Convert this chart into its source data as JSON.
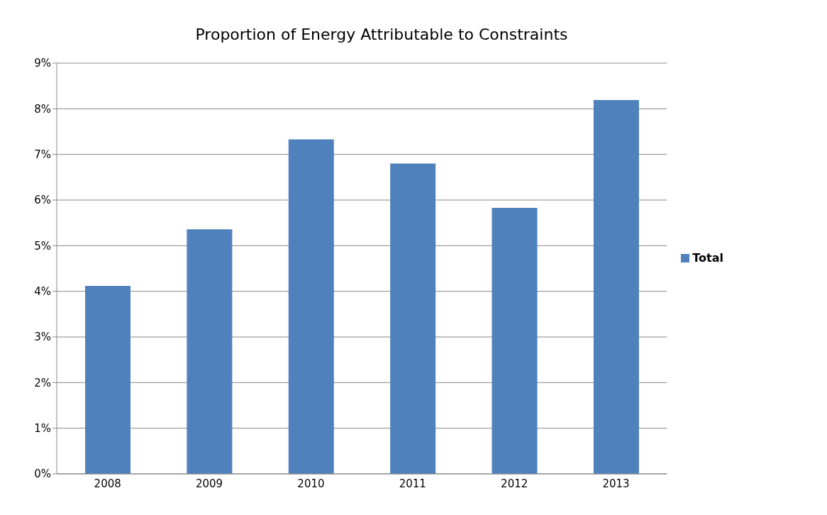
{
  "chart_data": {
    "type": "bar",
    "title": "Proportion of Energy Attributable to Constraints",
    "categories": [
      "2008",
      "2009",
      "2010",
      "2011",
      "2012",
      "2013"
    ],
    "series": [
      {
        "name": "Total",
        "color": "#4f81bd",
        "values": [
          4.12,
          5.36,
          7.33,
          6.8,
          5.83,
          8.19
        ]
      }
    ],
    "ylim": [
      0,
      9
    ],
    "yticks": [
      {
        "value": 0,
        "label": "0%"
      },
      {
        "value": 1,
        "label": "1%"
      },
      {
        "value": 2,
        "label": "2%"
      },
      {
        "value": 3,
        "label": "3%"
      },
      {
        "value": 4,
        "label": "4%"
      },
      {
        "value": 5,
        "label": "5%"
      },
      {
        "value": 6,
        "label": "6%"
      },
      {
        "value": 7,
        "label": "7%"
      },
      {
        "value": 8,
        "label": "8%"
      },
      {
        "value": 9,
        "label": "9%"
      }
    ],
    "grid": "y",
    "legend": "right"
  }
}
